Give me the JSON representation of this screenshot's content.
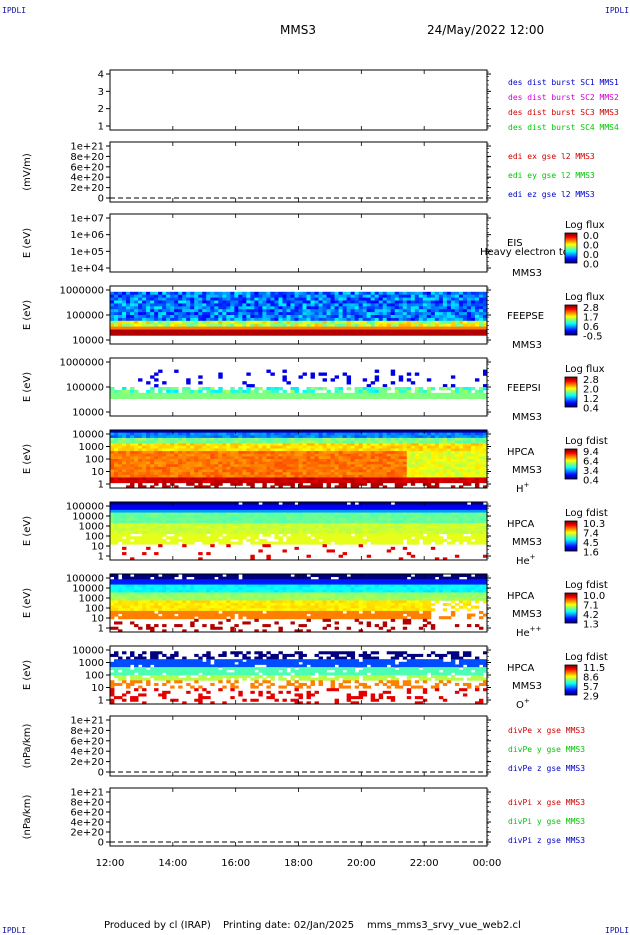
{
  "corners": {
    "tl": "IPDLI",
    "tr": "IPDLI",
    "bl": "IPDLI",
    "br": "IPDLI"
  },
  "header": {
    "mission": "MMS3",
    "datetime": "24/May/2022 12:00"
  },
  "footer": {
    "produced": "Produced by cl (IRAP)",
    "printing": "Printing date: 02/Jan/2025",
    "file": "mms_mms3_srvy_vue_web2.cl"
  },
  "chart_data": [
    {
      "id": "p1",
      "type": "line",
      "ylabel": "",
      "yticks": [
        "4",
        "3",
        "2",
        "1"
      ],
      "legend": [
        {
          "text": "des dist burst SC1 MMS1",
          "color": "#0000c8"
        },
        {
          "text": "des dist burst SC2 MMS2",
          "color": "#d000d0"
        },
        {
          "text": "des dist burst SC3 MMS3",
          "color": "#d00000"
        },
        {
          "text": "des dist burst SC4 MMS4",
          "color": "#00c800"
        }
      ]
    },
    {
      "id": "p2",
      "type": "line",
      "ylabel": "(mV/m)",
      "yticks": [
        "1e+21",
        "8e+20",
        "6e+20",
        "4e+20",
        "2e+20",
        "0"
      ],
      "zero_dashed": true,
      "legend": [
        {
          "text": "edi ex gse l2 MMS3",
          "color": "#d00000"
        },
        {
          "text": "edi ey gse l2 MMS3",
          "color": "#00c800"
        },
        {
          "text": "edi ez gse l2 MMS3",
          "color": "#0000c8"
        }
      ]
    },
    {
      "id": "p3",
      "type": "heatmap",
      "ylabel": "E (eV)",
      "yticks": [
        "1e+07",
        "1e+06",
        "1e+05",
        "1e+04"
      ],
      "labels": [
        "EIS",
        "MMS3"
      ],
      "overlay": "Heavy electron to",
      "colorbar": {
        "title": "Log flux",
        "ticks": [
          "0.0",
          "0.0",
          "0.0",
          "0.0"
        ]
      }
    },
    {
      "id": "p4",
      "type": "heatmap",
      "ylabel": "E (eV)",
      "yticks": [
        "1000000",
        "100000",
        "10000"
      ],
      "labels": [
        "FEEPSE",
        "MMS3"
      ],
      "colorbar": {
        "title": "Log flux",
        "ticks": [
          "2.8",
          "1.7",
          "0.6",
          "-0.5"
        ]
      }
    },
    {
      "id": "p5",
      "type": "heatmap",
      "ylabel": "E (eV)",
      "yticks": [
        "1000000",
        "100000",
        "10000"
      ],
      "labels": [
        "FEEPSI",
        "MMS3"
      ],
      "colorbar": {
        "title": "Log flux",
        "ticks": [
          "2.8",
          "2.0",
          "1.2",
          "0.4"
        ]
      }
    },
    {
      "id": "p6",
      "type": "heatmap",
      "ylabel": "E (eV)",
      "yticks": [
        "10000",
        "1000",
        "100",
        "10",
        "1"
      ],
      "labels": [
        "HPCA",
        "MMS3"
      ],
      "species": "H",
      "sup": "+",
      "colorbar": {
        "title": "Log fdist",
        "ticks": [
          "9.4",
          "6.4",
          "3.4",
          "0.4"
        ]
      }
    },
    {
      "id": "p7",
      "type": "heatmap",
      "ylabel": "E (eV)",
      "yticks": [
        "100000",
        "10000",
        "1000",
        "100",
        "10",
        "1"
      ],
      "labels": [
        "HPCA",
        "MMS3"
      ],
      "species": "He",
      "sup": "+",
      "colorbar": {
        "title": "Log fdist",
        "ticks": [
          "10.3",
          "7.4",
          "4.5",
          "1.6"
        ]
      }
    },
    {
      "id": "p8",
      "type": "heatmap",
      "ylabel": "E (eV)",
      "yticks": [
        "100000",
        "10000",
        "1000",
        "100",
        "10",
        "1"
      ],
      "labels": [
        "HPCA",
        "MMS3"
      ],
      "species": "He",
      "sup": "++",
      "colorbar": {
        "title": "Log fdist",
        "ticks": [
          "10.0",
          "7.1",
          "4.2",
          "1.3"
        ]
      }
    },
    {
      "id": "p9",
      "type": "heatmap",
      "ylabel": "E (eV)",
      "yticks": [
        "10000",
        "1000",
        "100",
        "10",
        "1"
      ],
      "labels": [
        "HPCA",
        "MMS3"
      ],
      "species": "O",
      "sup": "+",
      "colorbar": {
        "title": "Log fdist",
        "ticks": [
          "11.5",
          "8.6",
          "5.7",
          "2.9"
        ]
      }
    },
    {
      "id": "p10",
      "type": "line",
      "ylabel": "(nPa/km)",
      "yticks": [
        "1e+21",
        "8e+20",
        "6e+20",
        "4e+20",
        "2e+20",
        "0"
      ],
      "zero_dashed": true,
      "legend": [
        {
          "text": "divPe x gse MMS3",
          "color": "#d00000"
        },
        {
          "text": "divPe y gse MMS3",
          "color": "#00c800"
        },
        {
          "text": "divPe z gse MMS3",
          "color": "#0000c8"
        }
      ]
    },
    {
      "id": "p11",
      "type": "line",
      "ylabel": "(nPa/km)",
      "yticks": [
        "1e+21",
        "8e+20",
        "6e+20",
        "4e+20",
        "2e+20",
        "0"
      ],
      "zero_dashed": true,
      "legend": [
        {
          "text": "divPi x gse MMS3",
          "color": "#d00000"
        },
        {
          "text": "divPi y gse MMS3",
          "color": "#00c800"
        },
        {
          "text": "divPi z gse MMS3",
          "color": "#0000c8"
        }
      ]
    }
  ],
  "time_axis": [
    "12:00",
    "14:00",
    "16:00",
    "18:00",
    "20:00",
    "22:00",
    "00:00"
  ]
}
